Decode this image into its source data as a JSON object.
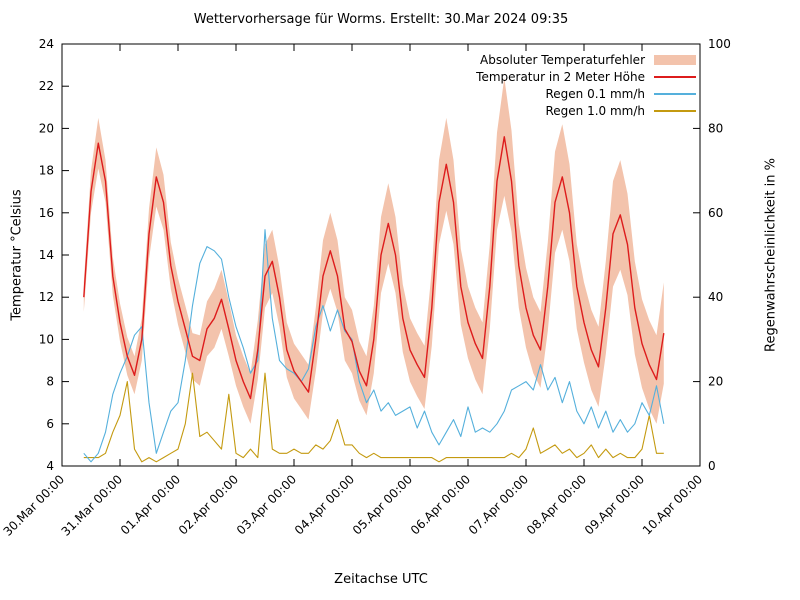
{
  "chart_data": {
    "type": "line",
    "title": "Wettervorhersage für Worms. Erstellt: 30.Mar 2024 09:35",
    "xlabel": "Zeitachse UTC",
    "ylabel_left": "Temperatur °Celsius",
    "ylabel_right": "Regenwahrscheinlichkeit in %",
    "x_range_days": [
      0,
      11
    ],
    "y_left_range": [
      4,
      24
    ],
    "y_left_tick_step": 2,
    "y_right_range": [
      0,
      100
    ],
    "y_right_tick_step": 20,
    "grid": false,
    "legend_position": "top-right-inside",
    "x_ticks": [
      "30.Mar 00:00",
      "31.Mar 00:00",
      "01.Apr 00:00",
      "02.Apr 00:00",
      "03.Apr 00:00",
      "04.Apr 00:00",
      "05.Apr 00:00",
      "06.Apr 00:00",
      "07.Apr 00:00",
      "08.Apr 00:00",
      "09.Apr 00:00",
      "10.Apr 00:00"
    ],
    "legend": [
      {
        "label": "Absoluter Temperaturfehler",
        "type": "band",
        "color": "#f3c3ac"
      },
      {
        "label": "Temperatur in 2 Meter Höhe",
        "type": "line",
        "color": "#dd1c1c"
      },
      {
        "label": "Regen 0.1 mm/h",
        "type": "line",
        "color": "#55b0dc"
      },
      {
        "label": "Regen 1.0 mm/h",
        "type": "line",
        "color": "#c49a10"
      }
    ],
    "time_start_day": 0.375,
    "time_step_day": 0.125,
    "series": {
      "temperature_c": [
        12.0,
        17.0,
        19.3,
        17.5,
        13.0,
        10.8,
        9.2,
        8.3,
        10.0,
        15.0,
        17.7,
        16.5,
        13.5,
        11.8,
        10.5,
        9.2,
        9.0,
        10.5,
        11.0,
        11.9,
        10.5,
        9.0,
        8.0,
        7.2,
        9.5,
        13.0,
        13.7,
        12.0,
        9.5,
        8.5,
        8.0,
        7.5,
        10.0,
        13.0,
        14.2,
        13.0,
        10.5,
        9.9,
        8.5,
        7.8,
        10.0,
        14.0,
        15.5,
        14.0,
        11.0,
        9.5,
        8.8,
        8.2,
        11.5,
        16.5,
        18.3,
        16.5,
        12.5,
        10.8,
        9.8,
        9.1,
        12.5,
        17.5,
        19.6,
        17.5,
        13.5,
        11.5,
        10.2,
        9.5,
        12.5,
        16.5,
        17.7,
        16.0,
        12.5,
        10.8,
        9.5,
        8.7,
        11.5,
        15.0,
        15.9,
        14.5,
        11.5,
        9.8,
        8.8,
        8.1,
        10.3
      ],
      "temperature_error_c": [
        0.7,
        1.0,
        1.2,
        1.0,
        0.9,
        0.9,
        0.9,
        0.9,
        1.0,
        1.2,
        1.4,
        1.3,
        1.1,
        1.1,
        1.1,
        1.1,
        1.2,
        1.3,
        1.4,
        1.4,
        1.3,
        1.2,
        1.2,
        1.2,
        1.4,
        1.5,
        1.5,
        1.4,
        1.3,
        1.3,
        1.3,
        1.3,
        1.5,
        1.7,
        1.8,
        1.7,
        1.5,
        1.5,
        1.4,
        1.4,
        1.6,
        1.8,
        1.9,
        1.8,
        1.6,
        1.5,
        1.5,
        1.5,
        1.8,
        2.0,
        2.2,
        2.0,
        1.8,
        1.7,
        1.7,
        1.7,
        2.0,
        2.3,
        2.8,
        2.4,
        2.0,
        1.9,
        1.8,
        1.8,
        2.1,
        2.4,
        2.5,
        2.3,
        2.0,
        1.9,
        1.9,
        1.9,
        2.2,
        2.5,
        2.6,
        2.4,
        2.2,
        2.1,
        2.1,
        2.1,
        2.4
      ],
      "rain_0_1_percent": [
        3,
        1,
        3,
        8,
        17,
        22,
        26,
        31,
        33,
        15,
        3,
        8,
        13,
        15,
        25,
        38,
        48,
        52,
        51,
        49,
        40,
        33,
        28,
        22,
        25,
        56,
        35,
        25,
        23,
        22,
        20,
        23,
        33,
        38,
        32,
        37,
        32,
        30,
        20,
        15,
        18,
        13,
        15,
        12,
        13,
        14,
        9,
        13,
        8,
        5,
        8,
        11,
        7,
        14,
        8,
        9,
        8,
        10,
        13,
        18,
        19,
        20,
        18,
        24,
        18,
        21,
        15,
        20,
        13,
        10,
        14,
        9,
        13,
        8,
        11,
        8,
        10,
        15,
        12,
        19,
        10
      ],
      "rain_1_0_percent": [
        2,
        2,
        2,
        3,
        8,
        12,
        20,
        4,
        1,
        2,
        1,
        2,
        3,
        4,
        10,
        22,
        7,
        8,
        6,
        4,
        17,
        3,
        2,
        4,
        2,
        22,
        4,
        3,
        3,
        4,
        3,
        3,
        5,
        4,
        6,
        11,
        5,
        5,
        3,
        2,
        3,
        2,
        2,
        2,
        2,
        2,
        2,
        2,
        2,
        1,
        2,
        2,
        2,
        2,
        2,
        2,
        2,
        2,
        2,
        3,
        2,
        4,
        9,
        3,
        4,
        5,
        3,
        4,
        2,
        3,
        5,
        2,
        4,
        2,
        3,
        2,
        2,
        4,
        12,
        3,
        3
      ]
    }
  }
}
